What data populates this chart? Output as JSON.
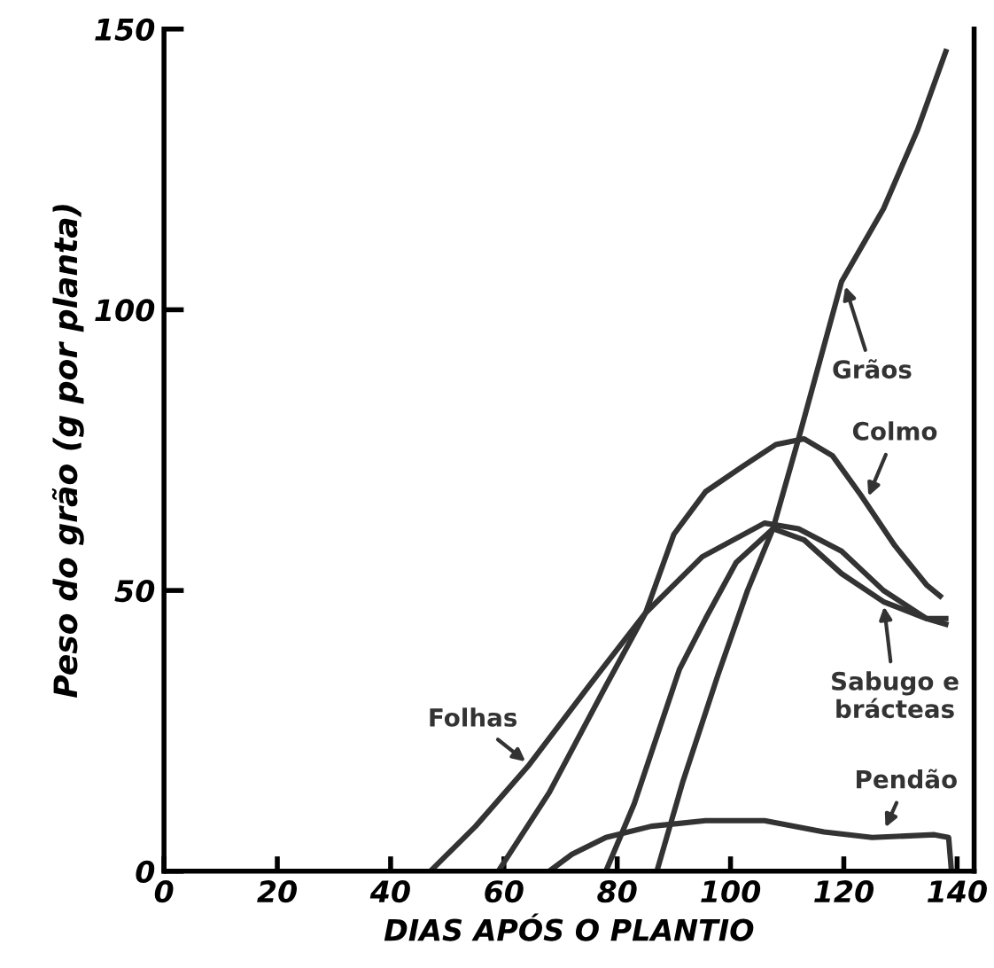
{
  "chart_data": {
    "type": "line",
    "xlabel": "DIAS APÓS O PLANTIO",
    "ylabel": "Peso do grão (g por planta)",
    "xlim": [
      0,
      143
    ],
    "ylim": [
      0,
      150
    ],
    "xticks": [
      0,
      20,
      40,
      60,
      80,
      100,
      120,
      140
    ],
    "yticks": [
      0,
      50,
      100,
      150
    ],
    "grid": false,
    "legend": false,
    "marker": "none",
    "line_style": "solid",
    "series": [
      {
        "color": "#333333",
        "x": [
          47,
          55,
          64.5,
          75,
          85,
          95,
          106,
          112,
          119.6,
          127,
          134.6,
          138
        ],
        "values": [
          0,
          8,
          19,
          33,
          46,
          56,
          62,
          61,
          57,
          50,
          45,
          44
        ]
      },
      {
        "color": "#333333",
        "x": [
          59,
          68,
          78,
          85,
          90,
          95.6,
          102,
          108,
          113,
          118,
          123,
          129,
          134.6,
          137
        ],
        "values": [
          0,
          14,
          33,
          46,
          60,
          67.6,
          72,
          76,
          77,
          74,
          67,
          58,
          51,
          49
        ]
      },
      {
        "color": "#333333",
        "x": [
          78,
          83,
          87,
          91,
          95.6,
          101,
          107.5,
          113,
          119.6,
          127,
          134.6,
          138
        ],
        "values": [
          0,
          12,
          24,
          36,
          45,
          55,
          61,
          59,
          53,
          48,
          45,
          45
        ]
      },
      {
        "color": "#333333",
        "x": [
          87,
          91.6,
          97.8,
          103,
          107.5,
          112,
          119.6,
          127,
          133,
          138
        ],
        "values": [
          0,
          16,
          35,
          50,
          61,
          77,
          105,
          118,
          132,
          146
        ]
      },
      {
        "color": "#333333",
        "x": [
          68,
          72,
          78,
          86,
          95.6,
          106,
          116.5,
          125,
          136,
          138.5,
          139
        ],
        "values": [
          0,
          3,
          6,
          8,
          9,
          9,
          7,
          6,
          6.5,
          6,
          0
        ]
      }
    ],
    "annotations": [
      {
        "text": "Folhas",
        "x": 64.5,
        "y": 19
      },
      {
        "text": "Colmo",
        "x": 124,
        "y": 66
      },
      {
        "text": "Grãos",
        "x": 120,
        "y": 105
      },
      {
        "text": "Sabugo e\nbrácteas",
        "x": 127,
        "y": 48
      },
      {
        "text": "Pendão",
        "x": 127,
        "y": 7
      }
    ]
  }
}
